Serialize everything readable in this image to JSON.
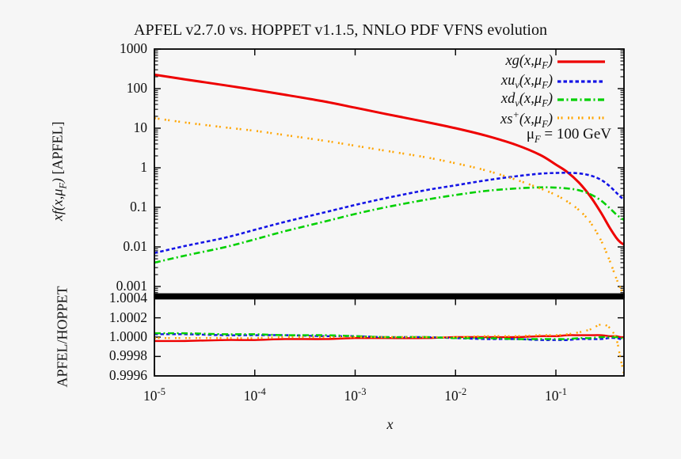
{
  "title": "APFEL v2.7.0 vs. HOPPET v1.1.5, NNLO PDF VFNS evolution",
  "x_axis": {
    "label": "x",
    "ticks": [
      {
        "base": "10",
        "exp": "-5"
      },
      {
        "base": "10",
        "exp": "-4"
      },
      {
        "base": "10",
        "exp": "-3"
      },
      {
        "base": "10",
        "exp": "-2"
      },
      {
        "base": "10",
        "exp": "-1"
      }
    ]
  },
  "top_panel": {
    "ylabel": {
      "italic": "xf(x,μ",
      "sub": "F",
      "close": ")",
      "plain": " [APFEL]"
    },
    "yticks": [
      {
        "label": "1000",
        "value": 1000
      },
      {
        "label": "100",
        "value": 100
      },
      {
        "label": "10",
        "value": 10
      },
      {
        "label": "1",
        "value": 1
      },
      {
        "label": "0.1",
        "value": 0.1
      },
      {
        "label": "0.01",
        "value": 0.01
      },
      {
        "label": "0.001",
        "value": 0.001
      }
    ]
  },
  "ratio_panel": {
    "ylabel": "APFEL/HOPPET",
    "yticks": [
      {
        "label": "1.0004",
        "value": 1.0004
      },
      {
        "label": "1.0002",
        "value": 1.0002
      },
      {
        "label": "1.0000",
        "value": 1.0
      },
      {
        "label": "0.9998",
        "value": 0.9998
      },
      {
        "label": "0.9996",
        "value": 0.9996
      }
    ]
  },
  "annotation": {
    "mu": "μ",
    "sub": "F",
    "rest": " = 100 GeV"
  },
  "legend": [
    {
      "key": "xg",
      "color": "#ee0000",
      "dash": "",
      "parts": [
        {
          "t": "i",
          "v": "xg(x,μ"
        },
        {
          "t": "sub",
          "v": "F"
        },
        {
          "t": "i",
          "v": ")"
        }
      ]
    },
    {
      "key": "xuv",
      "color": "#1414e6",
      "dash": "4.5 3",
      "parts": [
        {
          "t": "i",
          "v": "xu"
        },
        {
          "t": "sub",
          "v": "v"
        },
        {
          "t": "i",
          "v": "(x,μ"
        },
        {
          "t": "sub",
          "v": "F"
        },
        {
          "t": "i",
          "v": ")"
        }
      ]
    },
    {
      "key": "xdv",
      "color": "#00d000",
      "dash": "8 3.5 2 3.5",
      "parts": [
        {
          "t": "i",
          "v": "xd"
        },
        {
          "t": "sub",
          "v": "v"
        },
        {
          "t": "i",
          "v": "(x,μ"
        },
        {
          "t": "sub",
          "v": "F"
        },
        {
          "t": "i",
          "v": ")"
        }
      ]
    },
    {
      "key": "xsp",
      "color": "#ffa500",
      "dash": "2 2.5 2 6.5",
      "parts": [
        {
          "t": "i",
          "v": "xs"
        },
        {
          "t": "sup",
          "v": "+"
        },
        {
          "t": "i",
          "v": "(x,μ"
        },
        {
          "t": "sub",
          "v": "F"
        },
        {
          "t": "i",
          "v": ")"
        }
      ]
    }
  ],
  "chart_data": {
    "type": "line",
    "title": "APFEL v2.7.0 vs. HOPPET v1.1.5, NNLO PDF VFNS evolution",
    "xlabel": "x",
    "x_scale": "log",
    "x_range": [
      1e-05,
      0.477
    ],
    "annotation": "muF = 100 GeV",
    "legend_position": "top-right-inside",
    "x": [
      1e-05,
      2e-05,
      5e-05,
      0.0001,
      0.0002,
      0.0005,
      0.001,
      0.002,
      0.005,
      0.01,
      0.02,
      0.04,
      0.07,
      0.1,
      0.13,
      0.17,
      0.22,
      0.28,
      0.34,
      0.4,
      0.44,
      0.477
    ],
    "panels": [
      {
        "name": "pdfs",
        "ylabel": "xf(x,muF) [APFEL]",
        "y_scale": "log",
        "y_range": [
          0.0006,
          1000
        ],
        "series": [
          {
            "name": "xg(x,muF)",
            "color": "#ee0000",
            "style": "solid",
            "width": 3,
            "y": [
              225,
              172,
              122,
              93,
              70,
              47,
              33,
              23,
              14.5,
              10,
              6.5,
              3.8,
              2.1,
              1.2,
              0.78,
              0.42,
              0.19,
              0.075,
              0.032,
              0.017,
              0.013,
              0.0115
            ]
          },
          {
            "name": "xuv(x,muF)",
            "color": "#1414e6",
            "style": "dashed",
            "width": 2.6,
            "y": [
              0.007,
              0.0105,
              0.017,
              0.027,
              0.043,
              0.075,
              0.115,
              0.17,
              0.27,
              0.36,
              0.48,
              0.61,
              0.71,
              0.74,
              0.745,
              0.72,
              0.64,
              0.5,
              0.35,
              0.235,
              0.185,
              0.155
            ]
          },
          {
            "name": "xdv(x,muF)",
            "color": "#00d000",
            "style": "dashdot",
            "width": 2.6,
            "y": [
              0.004,
              0.006,
              0.0098,
              0.0155,
              0.025,
              0.044,
              0.068,
              0.1,
              0.155,
              0.205,
              0.26,
              0.3,
              0.32,
              0.315,
              0.3,
              0.27,
              0.215,
              0.15,
              0.098,
              0.066,
              0.055,
              0.048
            ]
          },
          {
            "name": "xs+(x,muF)",
            "color": "#ffa500",
            "style": "dotted",
            "width": 2.6,
            "y": [
              18,
              14,
              10.5,
              8.6,
              6.7,
              4.8,
              3.6,
              2.7,
              1.85,
              1.3,
              0.86,
              0.5,
              0.3,
              0.205,
              0.14,
              0.085,
              0.042,
              0.015,
              0.0048,
              0.0016,
              0.0009,
              0.0006
            ]
          }
        ]
      },
      {
        "name": "ratio",
        "ylabel": "APFEL/HOPPET",
        "y_scale": "linear",
        "y_range": [
          0.9996,
          1.0004
        ],
        "series": [
          {
            "name": "xg ratio",
            "color": "#ee0000",
            "style": "solid",
            "width": 2.4,
            "y": [
              0.99996,
              0.99996,
              0.99997,
              0.99997,
              0.99998,
              0.99998,
              0.99999,
              0.99999,
              0.99999,
              1.0,
              1.0,
              1.0,
              1.00001,
              1.00001,
              1.00002,
              1.00002,
              1.00002,
              1.00002,
              1.00001,
              1.00001,
              1.0,
              1.0
            ]
          },
          {
            "name": "xuv ratio",
            "color": "#1414e6",
            "style": "dashed",
            "width": 2.4,
            "y": [
              1.00003,
              1.00003,
              1.00002,
              1.00002,
              1.00002,
              1.00001,
              1.00001,
              1.0,
              1.0,
              0.99999,
              0.99998,
              0.99998,
              0.99997,
              0.99997,
              0.99997,
              0.99998,
              0.99998,
              0.99998,
              0.99999,
              0.99999,
              0.99998,
              0.99998
            ]
          },
          {
            "name": "xdv ratio",
            "color": "#00d000",
            "style": "dashdot",
            "width": 2.4,
            "y": [
              1.00004,
              1.00004,
              1.00003,
              1.00003,
              1.00002,
              1.00002,
              1.00001,
              1.0,
              1.0,
              0.99999,
              0.99999,
              0.99998,
              0.99998,
              0.99998,
              0.99998,
              0.99999,
              0.99999,
              1.0,
              1.0,
              1.0,
              0.99999,
              0.99999
            ]
          },
          {
            "name": "xs+ ratio",
            "color": "#ffa500",
            "style": "dotted",
            "width": 2.4,
            "y": [
              0.99999,
              0.99999,
              0.99999,
              0.99999,
              1.0,
              1.0,
              1.0,
              1.0,
              1.0,
              1.0,
              1.00001,
              1.00001,
              1.00002,
              1.00002,
              1.00003,
              1.00005,
              1.00008,
              1.00013,
              1.0001,
              0.99998,
              0.99978,
              0.99962
            ]
          }
        ]
      }
    ]
  }
}
